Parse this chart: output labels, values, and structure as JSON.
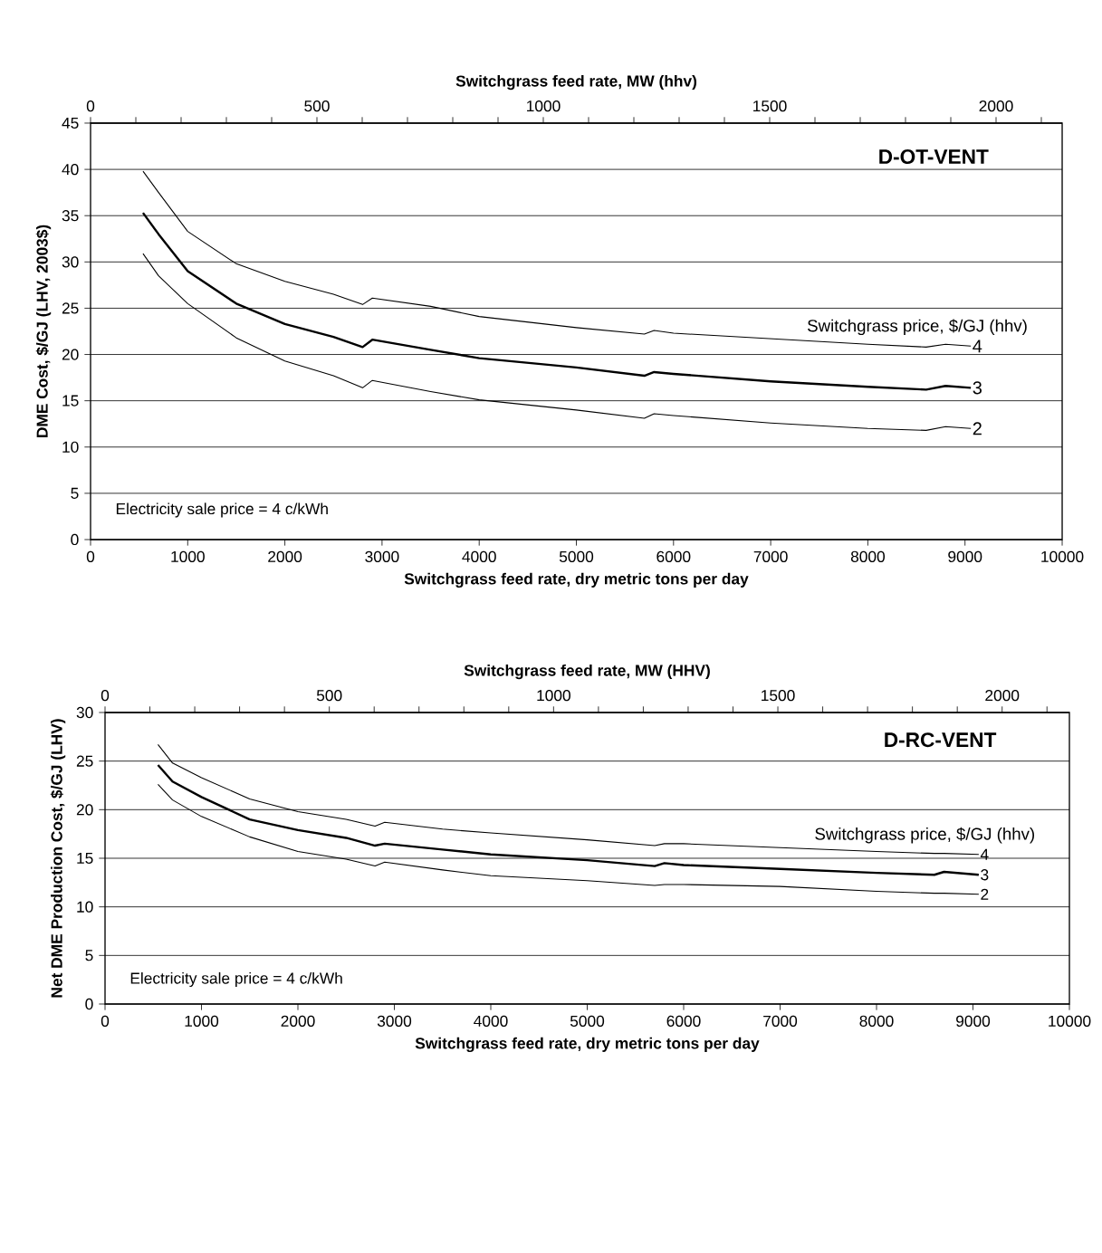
{
  "chart_data": [
    {
      "type": "line",
      "title": "D-OT-VENT",
      "xlabel": "Switchgrass feed rate, dry metric tons per day",
      "x2label": "Switchgrass feed rate, MW (hhv)",
      "ylabel": "DME Cost, $/GJ (LHV, 2003$)",
      "xlim": [
        0,
        10000
      ],
      "xticks": [
        0,
        1000,
        2000,
        3000,
        4000,
        5000,
        6000,
        7000,
        8000,
        9000,
        10000
      ],
      "x2lim": [
        0,
        2146
      ],
      "x2ticks": [
        0,
        {
          "value": 100,
          "label": null
        },
        {
          "value": 200,
          "label": null
        },
        {
          "value": 300,
          "label": null
        },
        {
          "value": 400,
          "label": null
        },
        500,
        {
          "value": 600,
          "label": null
        },
        {
          "value": 700,
          "label": null
        },
        {
          "value": 800,
          "label": null
        },
        {
          "value": 900,
          "label": null
        },
        1000,
        {
          "value": 1100,
          "label": null
        },
        {
          "value": 1200,
          "label": null
        },
        {
          "value": 1300,
          "label": null
        },
        {
          "value": 1400,
          "label": null
        },
        1500,
        {
          "value": 1600,
          "label": null
        },
        {
          "value": 1700,
          "label": null
        },
        {
          "value": 1800,
          "label": null
        },
        {
          "value": 1900,
          "label": null
        },
        2000,
        {
          "value": 2100,
          "label": null
        }
      ],
      "ylim": [
        0,
        45
      ],
      "yticks": [
        0,
        5,
        10,
        15,
        20,
        25,
        30,
        35,
        40,
        45
      ],
      "grid": "y",
      "annotations": [
        "Electricity sale price = 4 c/kWh",
        "Switchgrass price, $/GJ (hhv)"
      ],
      "x": [
        540,
        700,
        1000,
        1500,
        2000,
        2500,
        2800,
        2900,
        3500,
        4000,
        5000,
        5700,
        5800,
        6000,
        7000,
        8000,
        8600,
        8800,
        9060
      ],
      "series": [
        {
          "name": "4",
          "color": "#000000",
          "values": [
            39.8,
            37.5,
            33.3,
            29.8,
            27.9,
            26.5,
            25.4,
            26.1,
            25.2,
            24.1,
            22.9,
            22.2,
            22.6,
            22.3,
            21.7,
            21.1,
            20.8,
            21.1,
            20.9
          ]
        },
        {
          "name": "3",
          "color": "#000000",
          "values": [
            35.3,
            33.0,
            29.0,
            25.5,
            23.3,
            21.9,
            20.8,
            21.6,
            20.5,
            19.6,
            18.6,
            17.7,
            18.1,
            17.9,
            17.1,
            16.5,
            16.2,
            16.6,
            16.4
          ]
        },
        {
          "name": "2",
          "color": "#000000",
          "values": [
            30.9,
            28.5,
            25.5,
            21.8,
            19.3,
            17.7,
            16.4,
            17.2,
            16.0,
            15.1,
            14.0,
            13.1,
            13.6,
            13.4,
            12.6,
            12.0,
            11.8,
            12.2,
            12.0
          ]
        }
      ]
    },
    {
      "type": "line",
      "title": "D-RC-VENT",
      "xlabel": "Switchgrass feed rate, dry metric tons per day",
      "x2label": "Switchgrass feed rate, MW (HHV)",
      "ylabel": "Net DME Production Cost, $/GJ (LHV)",
      "xlim": [
        0,
        10000
      ],
      "xticks": [
        0,
        1000,
        2000,
        3000,
        4000,
        5000,
        6000,
        7000,
        8000,
        9000,
        10000
      ],
      "x2lim": [
        0,
        2150
      ],
      "x2ticks": [
        0,
        {
          "value": 100,
          "label": null
        },
        {
          "value": 200,
          "label": null
        },
        {
          "value": 300,
          "label": null
        },
        {
          "value": 400,
          "label": null
        },
        500,
        {
          "value": 600,
          "label": null
        },
        {
          "value": 700,
          "label": null
        },
        {
          "value": 800,
          "label": null
        },
        {
          "value": 900,
          "label": null
        },
        1000,
        {
          "value": 1100,
          "label": null
        },
        {
          "value": 1200,
          "label": null
        },
        {
          "value": 1300,
          "label": null
        },
        {
          "value": 1400,
          "label": null
        },
        1500,
        {
          "value": 1600,
          "label": null
        },
        {
          "value": 1700,
          "label": null
        },
        {
          "value": 1800,
          "label": null
        },
        {
          "value": 1900,
          "label": null
        },
        2000,
        {
          "value": 2100,
          "label": null
        }
      ],
      "ylim": [
        0,
        30
      ],
      "yticks": [
        0,
        5,
        10,
        15,
        20,
        25,
        30
      ],
      "grid": "y",
      "annotations": [
        "Electricity sale price = 4 c/kWh",
        "Switchgrass price, $/GJ (hhv)"
      ],
      "x": [
        549,
        700,
        1000,
        1500,
        2000,
        2500,
        2800,
        2900,
        3500,
        4000,
        5000,
        5700,
        5800,
        6000,
        7000,
        8000,
        8600,
        8700,
        9060
      ],
      "series": [
        {
          "name": "4",
          "color": "#000000",
          "values": [
            26.7,
            24.8,
            23.3,
            21.1,
            19.8,
            19.0,
            18.3,
            18.7,
            18.0,
            17.6,
            16.9,
            16.3,
            16.5,
            16.5,
            16.1,
            15.7,
            15.5,
            15.5,
            15.4
          ]
        },
        {
          "name": "3",
          "color": "#000000",
          "values": [
            24.6,
            22.9,
            21.3,
            19.0,
            17.9,
            17.1,
            16.3,
            16.5,
            15.9,
            15.4,
            14.8,
            14.2,
            14.5,
            14.3,
            13.9,
            13.5,
            13.3,
            13.6,
            13.3
          ]
        },
        {
          "name": "2",
          "color": "#000000",
          "values": [
            22.6,
            21.0,
            19.3,
            17.2,
            15.7,
            14.9,
            14.2,
            14.6,
            13.8,
            13.2,
            12.7,
            12.2,
            12.3,
            12.3,
            12.1,
            11.6,
            11.4,
            11.4,
            11.3
          ]
        }
      ]
    }
  ]
}
